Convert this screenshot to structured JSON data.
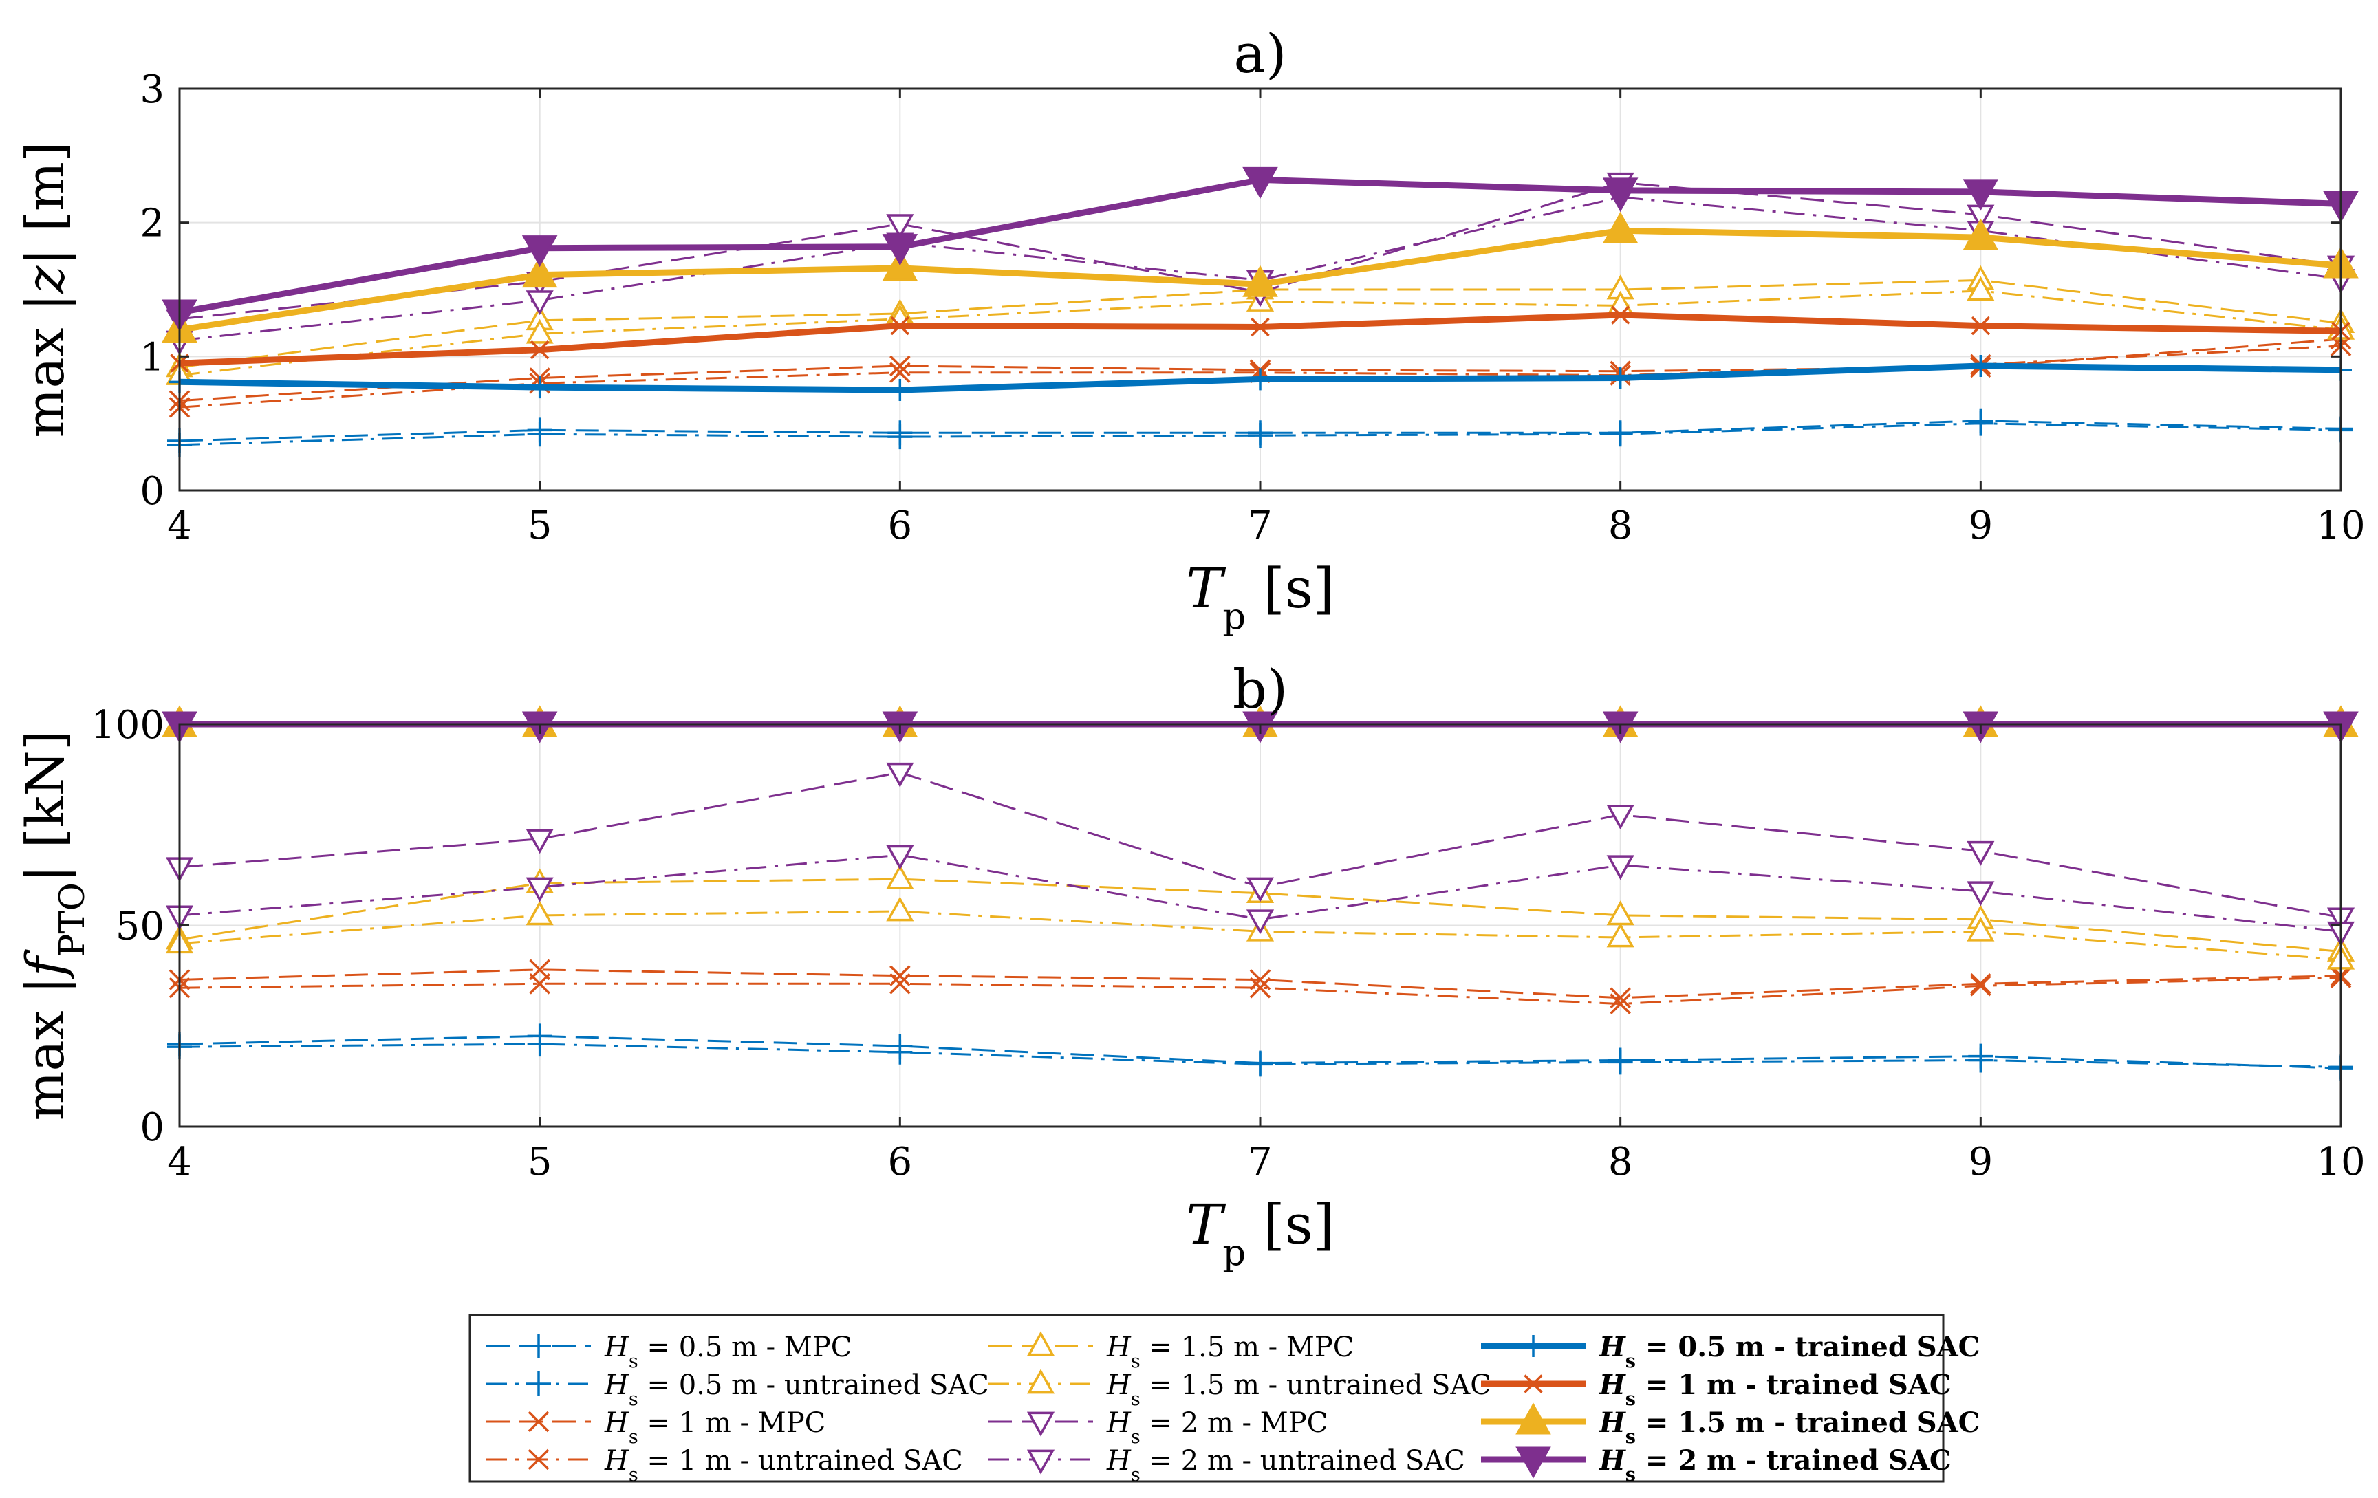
{
  "chart_data": [
    {
      "type": "line",
      "panel_label": "a)",
      "ylabel": "max |z| [m]",
      "xlabel": "T_p [s]",
      "xlim": [
        4,
        10
      ],
      "ylim": [
        0,
        3
      ],
      "xticks": [
        4,
        5,
        6,
        7,
        8,
        9,
        10
      ],
      "yticks": [
        0,
        1,
        2,
        3
      ],
      "grid": true,
      "x": [
        4,
        5,
        6,
        7,
        8,
        9,
        10
      ],
      "series": [
        {
          "name": "H_s = 0.5 m - MPC",
          "values": [
            0.37,
            0.45,
            0.43,
            0.43,
            0.43,
            0.52,
            0.46
          ]
        },
        {
          "name": "H_s = 0.5 m - untrained SAC",
          "values": [
            0.34,
            0.42,
            0.4,
            0.41,
            0.42,
            0.5,
            0.45
          ]
        },
        {
          "name": "H_s = 1 m - MPC",
          "values": [
            0.67,
            0.84,
            0.93,
            0.9,
            0.89,
            0.92,
            1.13
          ]
        },
        {
          "name": "H_s = 1 m - untrained SAC",
          "values": [
            0.62,
            0.8,
            0.88,
            0.88,
            0.86,
            0.94,
            1.08
          ]
        },
        {
          "name": "H_s = 1.5 m - MPC",
          "values": [
            0.92,
            1.27,
            1.32,
            1.5,
            1.5,
            1.57,
            1.25
          ]
        },
        {
          "name": "H_s = 1.5 m - untrained SAC",
          "values": [
            0.86,
            1.17,
            1.28,
            1.41,
            1.38,
            1.49,
            1.2
          ]
        },
        {
          "name": "H_s = 2 m - MPC",
          "values": [
            1.28,
            1.56,
            1.99,
            1.48,
            2.3,
            2.06,
            1.68
          ]
        },
        {
          "name": "H_s = 2 m - untrained SAC",
          "values": [
            1.12,
            1.42,
            1.85,
            1.57,
            2.19,
            1.94,
            1.58
          ]
        },
        {
          "name": "H_s = 0.5 m - trained SAC",
          "values": [
            0.81,
            0.77,
            0.75,
            0.83,
            0.84,
            0.93,
            0.9
          ]
        },
        {
          "name": "H_s = 1 m - trained SAC",
          "values": [
            0.95,
            1.05,
            1.23,
            1.22,
            1.31,
            1.23,
            1.19
          ]
        },
        {
          "name": "H_s = 1.5 m - trained SAC",
          "values": [
            1.2,
            1.61,
            1.66,
            1.54,
            1.94,
            1.89,
            1.68
          ]
        },
        {
          "name": "H_s = 2 m - trained SAC",
          "values": [
            1.33,
            1.81,
            1.82,
            2.32,
            2.24,
            2.23,
            2.14
          ]
        }
      ]
    },
    {
      "type": "line",
      "panel_label": "b)",
      "ylabel": "max |f_PTO| [kN]",
      "xlabel": "T_p [s]",
      "xlim": [
        4,
        10
      ],
      "ylim": [
        0,
        100
      ],
      "xticks": [
        4,
        5,
        6,
        7,
        8,
        9,
        10
      ],
      "yticks": [
        0,
        50,
        100
      ],
      "grid": true,
      "x": [
        4,
        5,
        6,
        7,
        8,
        9,
        10
      ],
      "series": [
        {
          "name": "H_s = 0.5 m - MPC",
          "values": [
            20.5,
            22.5,
            20.0,
            15.8,
            16.5,
            17.5,
            14.5
          ]
        },
        {
          "name": "H_s = 0.5 m - untrained SAC",
          "values": [
            19.8,
            20.5,
            18.5,
            15.5,
            16.0,
            16.5,
            14.8
          ]
        },
        {
          "name": "H_s = 1 m - MPC",
          "values": [
            36.5,
            39.0,
            37.5,
            36.5,
            32.0,
            35.5,
            37.5
          ]
        },
        {
          "name": "H_s = 1 m - untrained SAC",
          "values": [
            34.5,
            35.5,
            35.5,
            34.5,
            30.5,
            35.0,
            37.0
          ]
        },
        {
          "name": "H_s = 1.5 m - MPC",
          "values": [
            46.5,
            60.5,
            61.5,
            58.0,
            52.5,
            51.5,
            43.5
          ]
        },
        {
          "name": "H_s = 1.5 m - untrained SAC",
          "values": [
            45.5,
            52.5,
            53.5,
            48.5,
            47.0,
            48.5,
            41.5
          ]
        },
        {
          "name": "H_s = 2 m - MPC",
          "values": [
            64.5,
            71.5,
            88.0,
            59.5,
            77.5,
            68.5,
            52.0
          ]
        },
        {
          "name": "H_s = 2 m - untrained SAC",
          "values": [
            52.5,
            59.5,
            67.5,
            51.5,
            65.0,
            58.5,
            48.5
          ]
        },
        {
          "name": "H_s = 0.5 m - trained SAC",
          "values": [
            100,
            100,
            100,
            100,
            100,
            100,
            100
          ]
        },
        {
          "name": "H_s = 1 m - trained SAC",
          "values": [
            100,
            100,
            100,
            100,
            100,
            100,
            100
          ]
        },
        {
          "name": "H_s = 1.5 m - trained SAC",
          "values": [
            100,
            100,
            100,
            100,
            100,
            100,
            100
          ]
        },
        {
          "name": "H_s = 2 m - trained SAC",
          "values": [
            100,
            100,
            100,
            100,
            100,
            100,
            100
          ]
        }
      ]
    }
  ],
  "legend": {
    "placement": "bottom-center",
    "entries": [
      {
        "name": "H_s = 0.5 m - MPC",
        "hs": "0.5",
        "label": " m - MPC"
      },
      {
        "name": "H_s = 0.5 m - untrained SAC",
        "hs": "0.5",
        "label": " m - untrained SAC"
      },
      {
        "name": "H_s = 1 m - MPC",
        "hs": "1",
        "label": " m - MPC"
      },
      {
        "name": "H_s = 1 m - untrained SAC",
        "hs": "1",
        "label": " m - untrained SAC"
      },
      {
        "name": "H_s = 1.5 m - MPC",
        "hs": "1.5",
        "label": " m - MPC"
      },
      {
        "name": "H_s = 1.5 m - untrained SAC",
        "hs": "1.5",
        "label": " m - untrained SAC"
      },
      {
        "name": "H_s = 2 m - MPC",
        "hs": "2",
        "label": " m - MPC"
      },
      {
        "name": "H_s = 2 m - untrained SAC",
        "hs": "2",
        "label": " m - untrained SAC"
      },
      {
        "name": "H_s = 0.5 m - trained SAC",
        "hs": "0.5",
        "label": " m - trained SAC"
      },
      {
        "name": "H_s = 1 m - trained SAC",
        "hs": "1",
        "label": " m - trained SAC"
      },
      {
        "name": "H_s = 1.5 m - trained SAC",
        "hs": "1.5",
        "label": " m - trained SAC"
      },
      {
        "name": "H_s = 2 m - trained SAC",
        "hs": "2",
        "label": " m - trained SAC"
      }
    ]
  },
  "series_style": [
    {
      "color": "#0072BD",
      "dash": "long-dash",
      "marker": "plus",
      "weight": "thin"
    },
    {
      "color": "#0072BD",
      "dash": "dash-dot",
      "marker": "plus",
      "weight": "thin"
    },
    {
      "color": "#D95319",
      "dash": "long-dash",
      "marker": "cross",
      "weight": "thin"
    },
    {
      "color": "#D95319",
      "dash": "dash-dot",
      "marker": "cross",
      "weight": "thin"
    },
    {
      "color": "#EDB120",
      "dash": "long-dash",
      "marker": "triangle-up-open",
      "weight": "thin"
    },
    {
      "color": "#EDB120",
      "dash": "dash-dot",
      "marker": "triangle-up-open",
      "weight": "thin"
    },
    {
      "color": "#7E2F8E",
      "dash": "long-dash",
      "marker": "triangle-down-open",
      "weight": "thin"
    },
    {
      "color": "#7E2F8E",
      "dash": "dash-dot",
      "marker": "triangle-down-open",
      "weight": "thin"
    },
    {
      "color": "#0072BD",
      "dash": "solid",
      "marker": "plus",
      "weight": "thick"
    },
    {
      "color": "#D95319",
      "dash": "solid",
      "marker": "cross",
      "weight": "thick"
    },
    {
      "color": "#EDB120",
      "dash": "solid",
      "marker": "triangle-up-filled",
      "weight": "thick"
    },
    {
      "color": "#7E2F8E",
      "dash": "solid",
      "marker": "triangle-down-filled",
      "weight": "thick"
    }
  ]
}
